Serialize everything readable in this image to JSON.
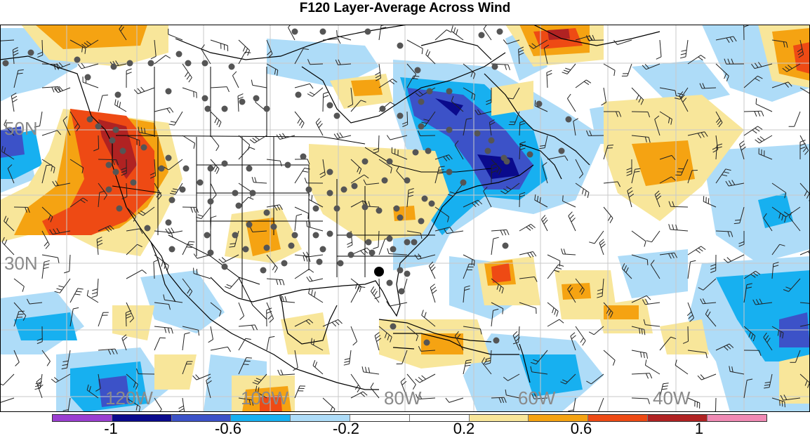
{
  "title": "F120 Layer-Average Across Wind",
  "lat_labels": {
    "lat50": "50N",
    "lat30": "30N"
  },
  "lon_labels": {
    "lon120": "120W",
    "lon100": "100W",
    "lon80": "80W",
    "lon60": "60W",
    "lon40": "40W"
  },
  "colorbar": {
    "colors": [
      "#9a3fd1",
      "#0a0a8c",
      "#3c52c8",
      "#17b0f0",
      "#aedcf8",
      "#ffffff",
      "#ffffff",
      "#f8e69a",
      "#f5a312",
      "#ee4a14",
      "#b02222",
      "#f08ab4"
    ],
    "labels": {
      "l1": "-1",
      "l2": "-0.6",
      "l3": "-0.2",
      "l4": "0.2",
      "l5": "0.6",
      "l6": "1"
    }
  },
  "highlight_station": "single large black station marker in northern Florida"
}
